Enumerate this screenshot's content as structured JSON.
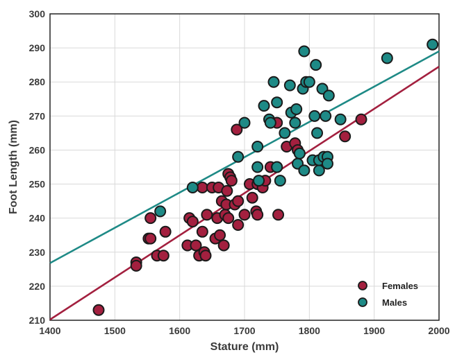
{
  "chart_data": {
    "type": "scatter",
    "title": "",
    "xlabel": "Stature (mm)",
    "ylabel": "Foot Length (mm)",
    "xlim": [
      1400,
      2000
    ],
    "ylim": [
      210,
      300
    ],
    "xticks": [
      "1400",
      "1500",
      "1600",
      "1700",
      "1800",
      "1900",
      "2000"
    ],
    "yticks": [
      "210",
      "220",
      "230",
      "240",
      "250",
      "260",
      "270",
      "280",
      "290",
      "300"
    ],
    "grid": true,
    "legend_position": "bottom-right",
    "series": [
      {
        "name": "Females",
        "color": "#a3203f",
        "points": [
          [
            1475,
            213
          ],
          [
            1533,
            227
          ],
          [
            1533,
            226
          ],
          [
            1552,
            234
          ],
          [
            1555,
            234
          ],
          [
            1555,
            240
          ],
          [
            1565,
            229
          ],
          [
            1575,
            229
          ],
          [
            1578,
            236
          ],
          [
            1612,
            232
          ],
          [
            1615,
            240
          ],
          [
            1620,
            239
          ],
          [
            1625,
            232
          ],
          [
            1630,
            229
          ],
          [
            1635,
            236
          ],
          [
            1635,
            249
          ],
          [
            1638,
            230
          ],
          [
            1640,
            229
          ],
          [
            1642,
            241
          ],
          [
            1650,
            249
          ],
          [
            1655,
            234
          ],
          [
            1658,
            240
          ],
          [
            1660,
            249
          ],
          [
            1662,
            235
          ],
          [
            1665,
            245
          ],
          [
            1668,
            232
          ],
          [
            1670,
            241
          ],
          [
            1672,
            244
          ],
          [
            1673,
            248
          ],
          [
            1675,
            240
          ],
          [
            1675,
            253
          ],
          [
            1678,
            252
          ],
          [
            1680,
            251
          ],
          [
            1685,
            244
          ],
          [
            1688,
            266
          ],
          [
            1690,
            245
          ],
          [
            1690,
            238
          ],
          [
            1700,
            241
          ],
          [
            1708,
            250
          ],
          [
            1712,
            246
          ],
          [
            1718,
            242
          ],
          [
            1720,
            241
          ],
          [
            1720,
            250
          ],
          [
            1728,
            249
          ],
          [
            1732,
            251
          ],
          [
            1740,
            255
          ],
          [
            1750,
            255
          ],
          [
            1750,
            268
          ],
          [
            1752,
            241
          ],
          [
            1765,
            261
          ],
          [
            1778,
            262
          ],
          [
            1782,
            260
          ],
          [
            1785,
            259
          ],
          [
            1855,
            264
          ],
          [
            1880,
            269
          ]
        ],
        "fit_line": {
          "x": [
            1400,
            2000
          ],
          "y": [
            210.2,
            284.5
          ]
        }
      },
      {
        "name": "Males",
        "color": "#1e8a86",
        "points": [
          [
            1570,
            242
          ],
          [
            1620,
            249
          ],
          [
            1690,
            258
          ],
          [
            1700,
            268
          ],
          [
            1720,
            255
          ],
          [
            1720,
            261
          ],
          [
            1722,
            251
          ],
          [
            1730,
            273
          ],
          [
            1738,
            269
          ],
          [
            1740,
            268
          ],
          [
            1745,
            280
          ],
          [
            1750,
            274
          ],
          [
            1750,
            255
          ],
          [
            1755,
            251
          ],
          [
            1762,
            265
          ],
          [
            1770,
            279
          ],
          [
            1772,
            271
          ],
          [
            1778,
            268
          ],
          [
            1780,
            272
          ],
          [
            1782,
            256
          ],
          [
            1785,
            259
          ],
          [
            1790,
            278
          ],
          [
            1792,
            289
          ],
          [
            1792,
            254
          ],
          [
            1795,
            280
          ],
          [
            1800,
            280
          ],
          [
            1805,
            257
          ],
          [
            1808,
            270
          ],
          [
            1810,
            285
          ],
          [
            1812,
            265
          ],
          [
            1815,
            254
          ],
          [
            1815,
            257
          ],
          [
            1820,
            278
          ],
          [
            1822,
            258
          ],
          [
            1825,
            270
          ],
          [
            1828,
            258
          ],
          [
            1828,
            256
          ],
          [
            1830,
            276
          ],
          [
            1848,
            269
          ],
          [
            1920,
            287
          ],
          [
            1990,
            291
          ]
        ],
        "fit_line": {
          "x": [
            1400,
            2000
          ],
          "y": [
            226.8,
            289.0
          ]
        }
      }
    ]
  }
}
